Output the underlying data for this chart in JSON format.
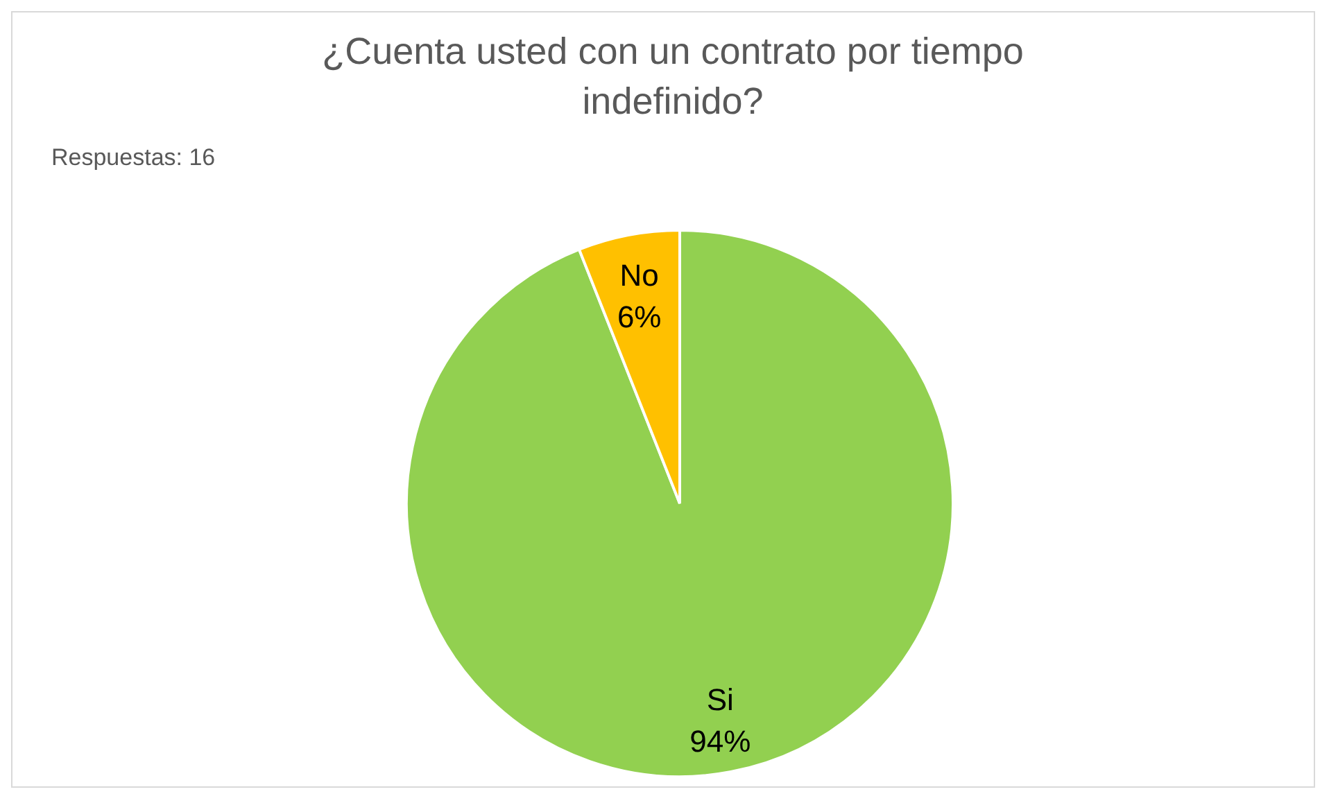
{
  "chart_data": {
    "type": "pie",
    "title": "¿Cuenta usted con un contrato por tiempo indefinido?",
    "annotations": [
      "Respuestas: 16"
    ],
    "categories": [
      "Si",
      "No"
    ],
    "values": [
      94,
      6
    ],
    "colors": [
      "#92d050",
      "#ffc000"
    ],
    "value_labels": [
      "94%",
      "6%"
    ]
  }
}
